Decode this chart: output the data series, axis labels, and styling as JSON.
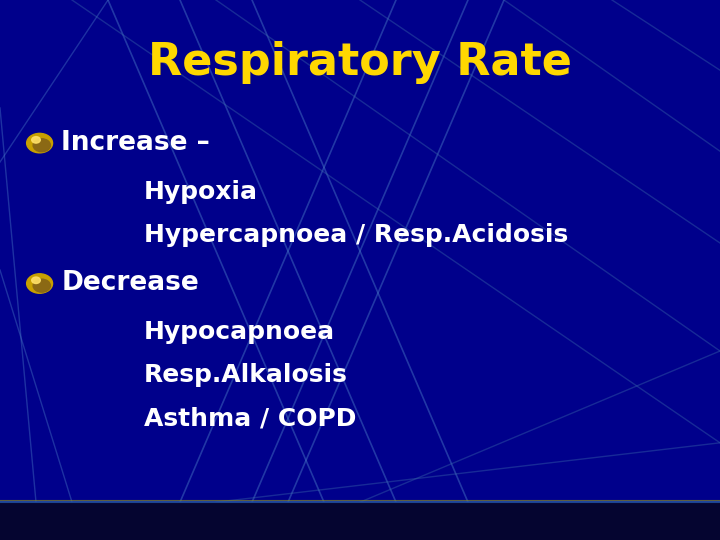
{
  "title": "Respiratory Rate",
  "title_color": "#FFD700",
  "title_fontsize": 32,
  "title_fontweight": "bold",
  "bg_color": "#00008B",
  "text_color": "#FFFFFF",
  "bullet_color": "#DAA520",
  "bullet1_label": "Increase –",
  "bullet1_sub": [
    "Hypoxia",
    "Hypercapnoea / Resp.Acidosis"
  ],
  "bullet2_label": "Decrease",
  "bullet2_sub": [
    "Hypocapnoea",
    "Resp.Alkalosis",
    "Asthma / COPD"
  ],
  "main_fontsize": 19,
  "sub_fontsize": 18,
  "figsize": [
    7.2,
    5.4
  ],
  "dpi": 100
}
